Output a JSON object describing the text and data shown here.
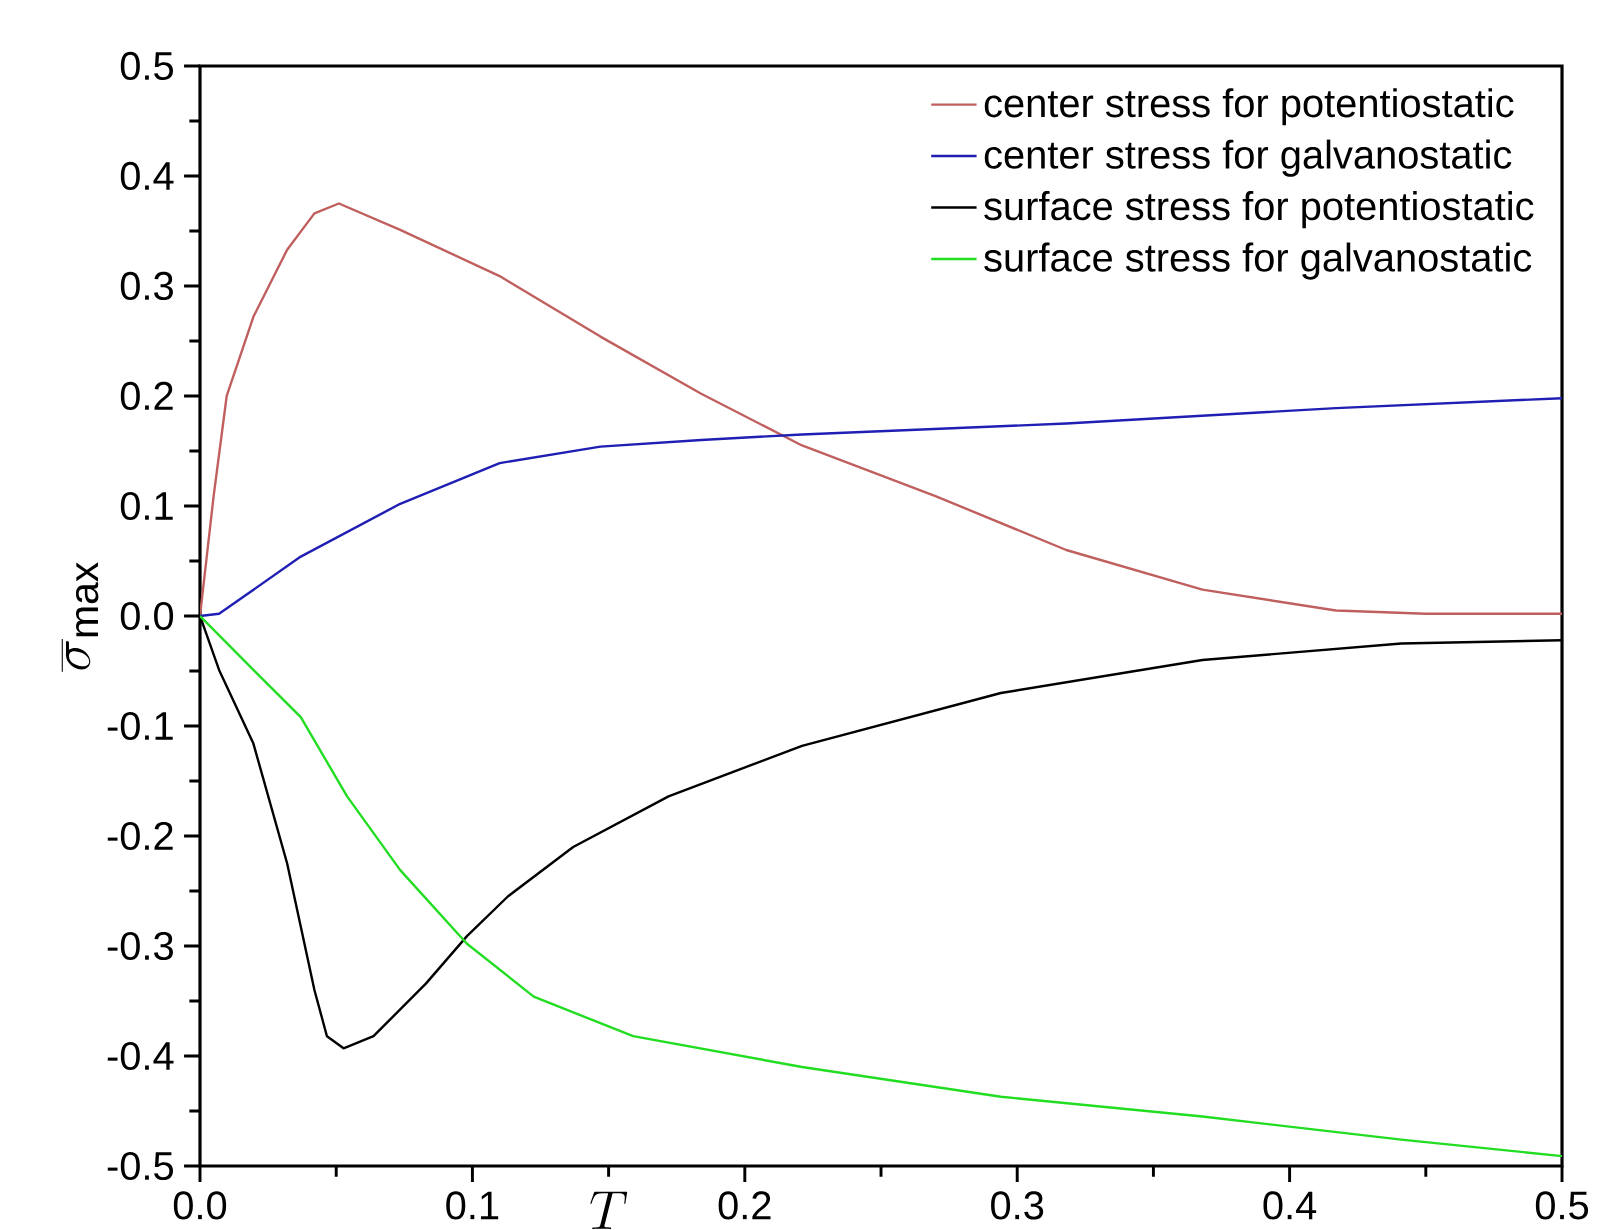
{
  "chart_data": {
    "type": "line",
    "xlabel": "T",
    "ylabel": "\\overline{\\sigma}_{\\mathrm{max}}",
    "xlim": [
      0,
      0.5
    ],
    "ylim": [
      -0.5,
      0.5
    ],
    "xticks": [
      {
        "value": 0,
        "label": "0.0"
      },
      0.1,
      0.2,
      0.3,
      0.4,
      0.5
    ],
    "yticks": [
      {
        "value": -0.5,
        "label": "-0.5"
      },
      {
        "value": -0.4,
        "label": "-0.4"
      },
      {
        "value": -0.3,
        "label": "-0.3"
      },
      {
        "value": -0.2,
        "label": "-0.2"
      },
      {
        "value": -0.1,
        "label": "-0.1"
      },
      {
        "value": 0,
        "label": "0.0"
      },
      0.1,
      0.2,
      0.3,
      0.4,
      0.5
    ],
    "legend": "top right",
    "grid": false,
    "marker": "none",
    "line_style": "solid",
    "series": [
      {
        "name": "center stress for potentiostatic",
        "color": "#c0605e",
        "x": [
          0,
          0.005,
          0.0098,
          0.0196,
          0.032,
          0.042,
          0.051,
          0.0735,
          0.11,
          0.147,
          0.184,
          0.221,
          0.27,
          0.318,
          0.368,
          0.417,
          0.45,
          0.5
        ],
        "values": [
          0,
          0.109,
          0.2,
          0.272,
          0.333,
          0.366,
          0.375,
          0.351,
          0.309,
          0.254,
          0.202,
          0.155,
          0.109,
          0.06,
          0.024,
          0.005,
          0.002,
          0.002
        ]
      },
      {
        "name": "center stress for galvanostatic",
        "color": "#1f1fb4",
        "x": [
          0,
          0.007,
          0.037,
          0.0735,
          0.11,
          0.147,
          0.184,
          0.221,
          0.318,
          0.417,
          0.5
        ],
        "values": [
          0,
          0.002,
          0.054,
          0.102,
          0.139,
          0.154,
          0.16,
          0.165,
          0.175,
          0.189,
          0.198
        ]
      },
      {
        "name": "surface stress for potentiostatic",
        "color": "#000000",
        "x": [
          0,
          0.007,
          0.0196,
          0.032,
          0.042,
          0.0466,
          0.0527,
          0.0637,
          0.083,
          0.098,
          0.113,
          0.137,
          0.172,
          0.221,
          0.294,
          0.368,
          0.441,
          0.5
        ],
        "values": [
          0,
          -0.049,
          -0.116,
          -0.225,
          -0.34,
          -0.382,
          -0.393,
          -0.382,
          -0.334,
          -0.291,
          -0.255,
          -0.21,
          -0.164,
          -0.118,
          -0.07,
          -0.04,
          -0.025,
          -0.022
        ]
      },
      {
        "name": "surface stress for galvanostatic",
        "color": "#22dd22",
        "x": [
          0,
          0.0196,
          0.037,
          0.054,
          0.0735,
          0.098,
          0.1225,
          0.159,
          0.221,
          0.294,
          0.368,
          0.441,
          0.5
        ],
        "values": [
          0,
          -0.049,
          -0.092,
          -0.164,
          -0.231,
          -0.298,
          -0.346,
          -0.382,
          -0.41,
          -0.437,
          -0.455,
          -0.476,
          -0.491
        ]
      }
    ]
  }
}
